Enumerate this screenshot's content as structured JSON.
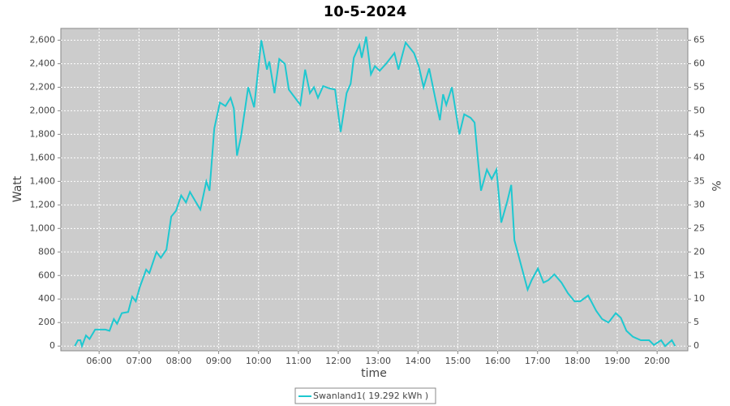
{
  "chart_data": {
    "type": "line",
    "title": "10-5-2024",
    "xlabel": "time",
    "ylabel": "Watt",
    "y2label": "%",
    "x": [
      5.39,
      5.47,
      5.53,
      5.57,
      5.67,
      5.76,
      5.9,
      6.0,
      6.16,
      6.26,
      6.37,
      6.45,
      6.57,
      6.73,
      6.83,
      6.92,
      7.02,
      7.18,
      7.26,
      7.44,
      7.55,
      7.69,
      7.81,
      7.93,
      8.06,
      8.18,
      8.28,
      8.4,
      8.54,
      8.69,
      8.77,
      8.89,
      9.03,
      9.17,
      9.3,
      9.38,
      9.46,
      9.56,
      9.74,
      9.89,
      9.99,
      10.07,
      10.21,
      10.27,
      10.4,
      10.52,
      10.66,
      10.76,
      11.05,
      11.17,
      11.29,
      11.39,
      11.49,
      11.62,
      11.78,
      11.92,
      12.06,
      12.21,
      12.31,
      12.39,
      12.53,
      12.59,
      12.7,
      12.82,
      12.92,
      13.04,
      13.2,
      13.41,
      13.51,
      13.69,
      13.9,
      14.02,
      14.14,
      14.28,
      14.45,
      14.55,
      14.63,
      14.71,
      14.85,
      15.04,
      15.16,
      15.32,
      15.42,
      15.5,
      15.58,
      15.73,
      15.85,
      15.97,
      16.09,
      16.24,
      16.34,
      16.42,
      16.75,
      16.85,
      17.01,
      17.15,
      17.27,
      17.42,
      17.6,
      17.76,
      17.93,
      18.07,
      18.27,
      18.47,
      18.62,
      18.78,
      18.96,
      19.09,
      19.23,
      19.39,
      19.59,
      19.8,
      19.92,
      20.1,
      20.2,
      20.37,
      20.45
    ],
    "series": [
      {
        "name": "Swanland1( 19.292 kWh )",
        "color": "#1ec8d0",
        "values": [
          0,
          50,
          50,
          0,
          90,
          60,
          140,
          140,
          140,
          130,
          230,
          190,
          280,
          290,
          420,
          380,
          500,
          650,
          620,
          800,
          750,
          820,
          1100,
          1150,
          1280,
          1220,
          1310,
          1240,
          1160,
          1400,
          1320,
          1850,
          2070,
          2040,
          2110,
          2020,
          1620,
          1780,
          2200,
          2030,
          2350,
          2600,
          2350,
          2420,
          2150,
          2440,
          2400,
          2180,
          2050,
          2350,
          2150,
          2200,
          2110,
          2210,
          2190,
          2180,
          1820,
          2150,
          2230,
          2450,
          2560,
          2450,
          2630,
          2310,
          2380,
          2340,
          2400,
          2490,
          2350,
          2580,
          2490,
          2380,
          2200,
          2360,
          2080,
          1920,
          2140,
          2050,
          2200,
          1800,
          1970,
          1940,
          1900,
          1600,
          1320,
          1500,
          1420,
          1500,
          1050,
          1230,
          1370,
          900,
          480,
          560,
          660,
          540,
          560,
          610,
          540,
          450,
          380,
          380,
          430,
          300,
          230,
          200,
          280,
          240,
          130,
          80,
          50,
          50,
          10,
          50,
          0,
          50,
          0
        ]
      }
    ],
    "xlim": [
      5.04,
      20.77
    ],
    "xticks": [
      {
        "value": 6,
        "label": "06:00"
      },
      {
        "value": 7,
        "label": "07:00"
      },
      {
        "value": 8,
        "label": "08:00"
      },
      {
        "value": 9,
        "label": "09:00"
      },
      {
        "value": 10,
        "label": "10:00"
      },
      {
        "value": 11,
        "label": "11:00"
      },
      {
        "value": 12,
        "label": "12:00"
      },
      {
        "value": 13,
        "label": "13:00"
      },
      {
        "value": 14,
        "label": "14:00"
      },
      {
        "value": 15,
        "label": "15:00"
      },
      {
        "value": 16,
        "label": "16:00"
      },
      {
        "value": 17,
        "label": "17:00"
      },
      {
        "value": 18,
        "label": "18:00"
      },
      {
        "value": 19,
        "label": "19:00"
      },
      {
        "value": 20,
        "label": "20:00"
      }
    ],
    "ylim": [
      -40,
      2700
    ],
    "yticks": [
      0,
      200,
      400,
      600,
      800,
      {
        "value": 1000,
        "label": "1,000"
      },
      {
        "value": 1200,
        "label": "1,200"
      },
      {
        "value": 1400,
        "label": "1,400"
      },
      {
        "value": 1600,
        "label": "1,600"
      },
      {
        "value": 1800,
        "label": "1,800"
      },
      {
        "value": 2000,
        "label": "2,000"
      },
      {
        "value": 2200,
        "label": "2,200"
      },
      {
        "value": 2400,
        "label": "2,400"
      },
      {
        "value": 2600,
        "label": "2,600"
      }
    ],
    "y2lim": [
      -1,
      67.5
    ],
    "y2ticks": [
      0,
      5,
      10,
      15,
      20,
      25,
      30,
      35,
      40,
      45,
      50,
      55,
      60,
      65
    ],
    "grid": true,
    "legend": "bottom"
  }
}
